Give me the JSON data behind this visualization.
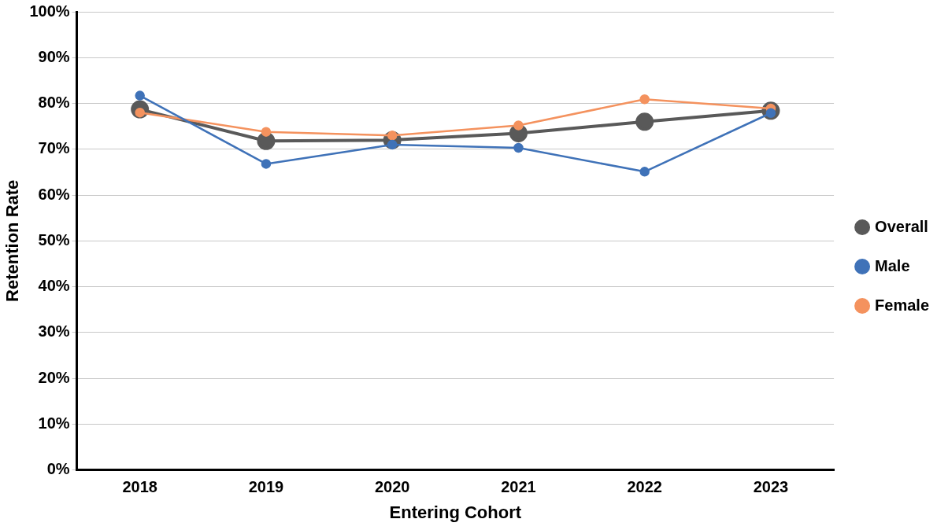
{
  "chart_data": {
    "type": "line",
    "xlabel": "Entering Cohort",
    "ylabel": "Retention Rate",
    "categories": [
      "2018",
      "2019",
      "2020",
      "2021",
      "2022",
      "2023"
    ],
    "series": [
      {
        "name": "Overall",
        "color": "#595959",
        "values": [
          78.7,
          71.8,
          72.0,
          73.5,
          76.0,
          78.4
        ]
      },
      {
        "name": "Male",
        "color": "#3f72b8",
        "values": [
          81.7,
          66.8,
          71.0,
          70.3,
          65.1,
          77.9
        ]
      },
      {
        "name": "Female",
        "color": "#f4925e",
        "values": [
          78.0,
          73.8,
          73.0,
          75.2,
          80.9,
          78.9
        ]
      }
    ],
    "ylim": [
      0,
      100
    ],
    "yticks": [
      {
        "value": 0,
        "label": "0%"
      },
      {
        "value": 10,
        "label": "10%"
      },
      {
        "value": 20,
        "label": "20%"
      },
      {
        "value": 30,
        "label": "30%"
      },
      {
        "value": 40,
        "label": "40%"
      },
      {
        "value": 50,
        "label": "50%"
      },
      {
        "value": 60,
        "label": "60%"
      },
      {
        "value": 70,
        "label": "70%"
      },
      {
        "value": 80,
        "label": "80%"
      },
      {
        "value": 90,
        "label": "90%"
      },
      {
        "value": 100,
        "label": "100%"
      }
    ],
    "grid": "y",
    "legend": "right",
    "marker": "circle",
    "line_style": "solid"
  }
}
